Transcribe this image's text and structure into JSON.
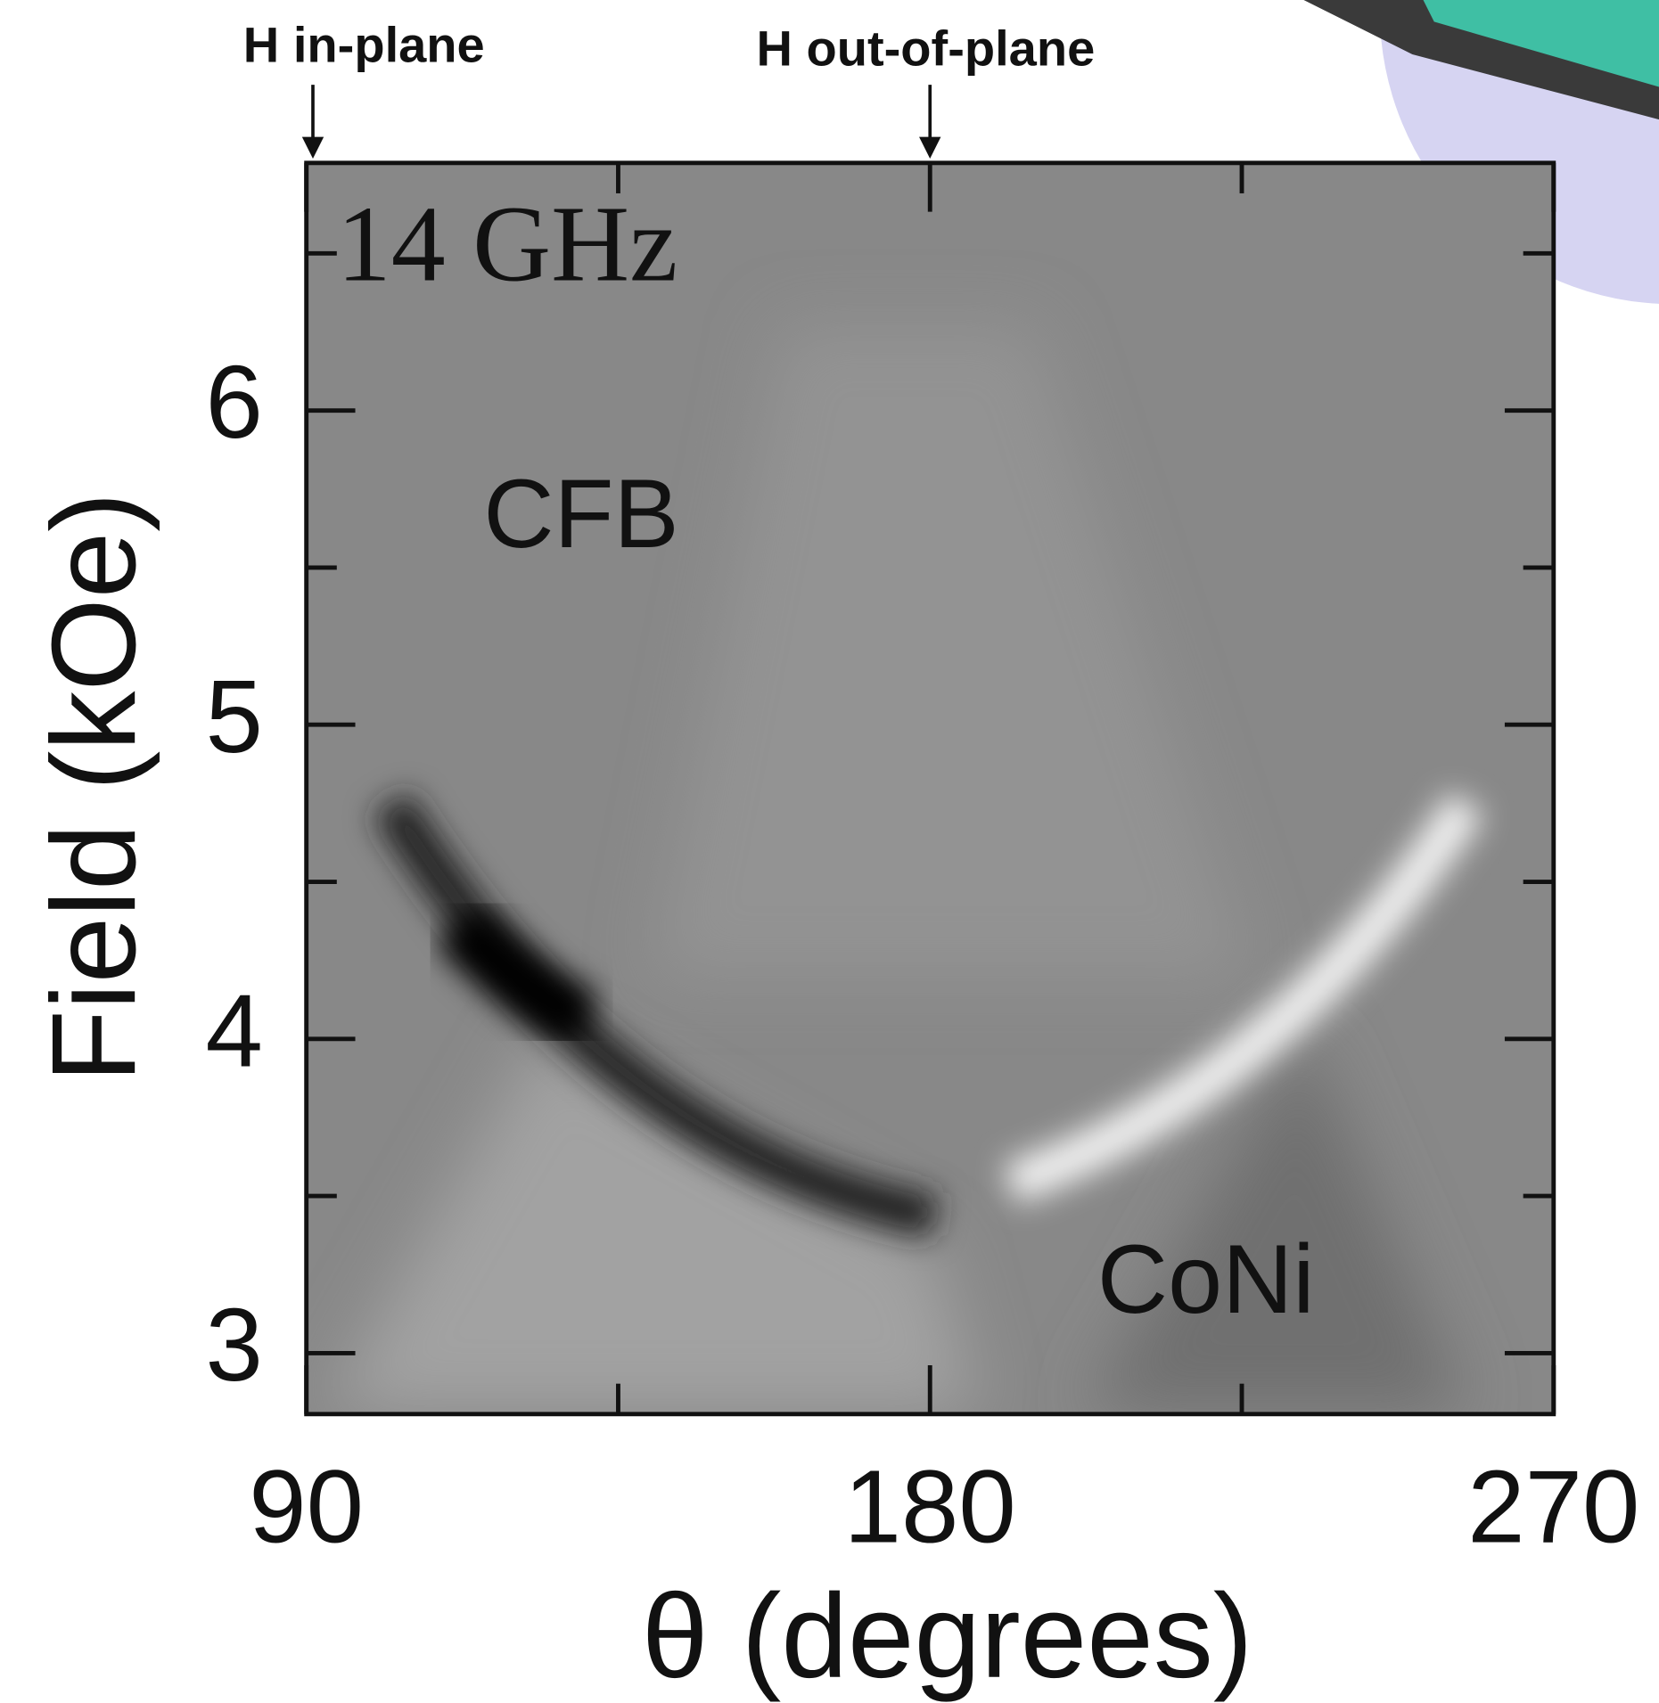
{
  "chart_data": {
    "type": "heatmap",
    "title": "14 GHz",
    "xlabel": "θ (degrees)",
    "ylabel": "Field (kOe)",
    "annotations": [
      "H in-plane",
      "H out-of-plane",
      "CFB",
      "CoNi"
    ],
    "xlim": [
      90,
      270
    ],
    "xticks": [
      90,
      180,
      270
    ],
    "xminorticks": [
      135,
      225
    ],
    "ylim": [
      2.806,
      6.788
    ],
    "yticks": [
      3,
      4,
      5,
      6
    ],
    "yminorticks": [
      3.5,
      4.5,
      5.5,
      6.5
    ]
  }
}
